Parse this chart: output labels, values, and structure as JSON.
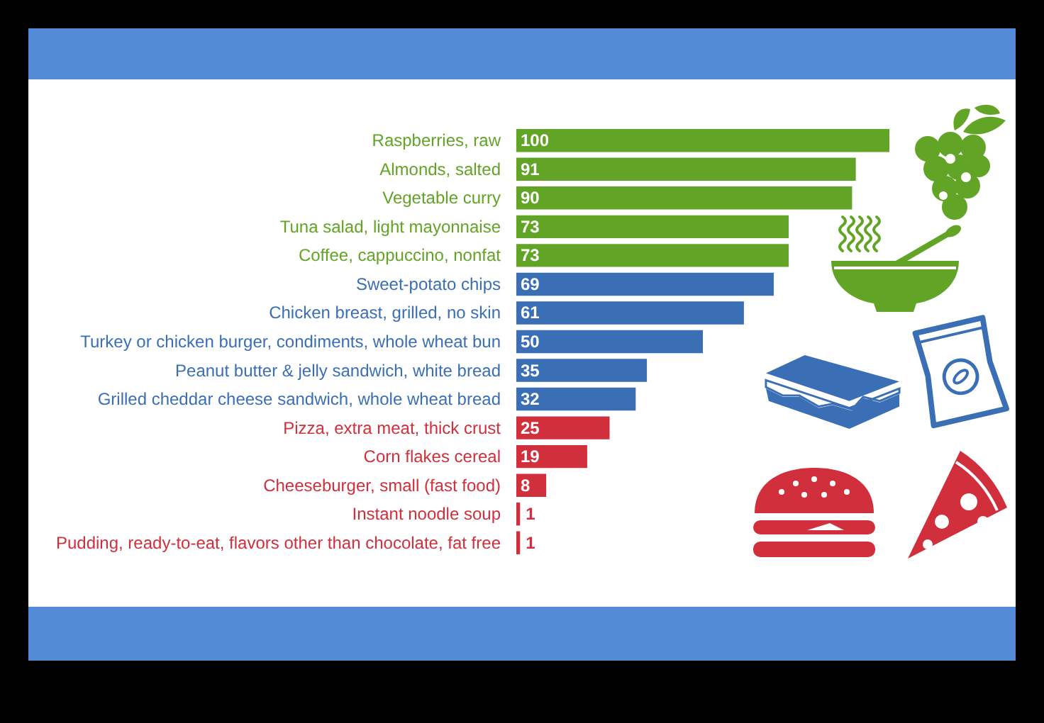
{
  "chart_data": {
    "type": "bar",
    "orientation": "horizontal",
    "categories": [
      "Raspberries, raw",
      "Almonds, salted",
      "Vegetable curry",
      "Tuna salad, light mayonnaise",
      "Coffee, cappuccino, nonfat",
      "Sweet-potato chips",
      "Chicken breast, grilled, no skin",
      "Turkey or chicken burger, condiments, whole wheat bun",
      "Peanut butter & jelly sandwich, white bread",
      "Grilled cheddar cheese sandwich, whole wheat bread",
      "Pizza, extra meat, thick crust",
      "Corn flakes cereal",
      "Cheeseburger, small (fast food)",
      "Instant noodle soup",
      "Pudding, ready-to-eat, flavors other than chocolate, fat free"
    ],
    "values": [
      100,
      91,
      90,
      73,
      73,
      69,
      61,
      50,
      35,
      32,
      25,
      19,
      8,
      1,
      1
    ],
    "colors": [
      "#62a425",
      "#62a425",
      "#62a425",
      "#62a425",
      "#62a425",
      "#3a6fb5",
      "#3a6fb5",
      "#3a6fb5",
      "#3a6fb5",
      "#3a6fb5",
      "#d12f3c",
      "#d12f3c",
      "#d12f3c",
      "#d12f3c",
      "#d12f3c"
    ],
    "xlim": [
      0,
      100
    ],
    "data_labels": true,
    "tick_labels": "y"
  }
}
